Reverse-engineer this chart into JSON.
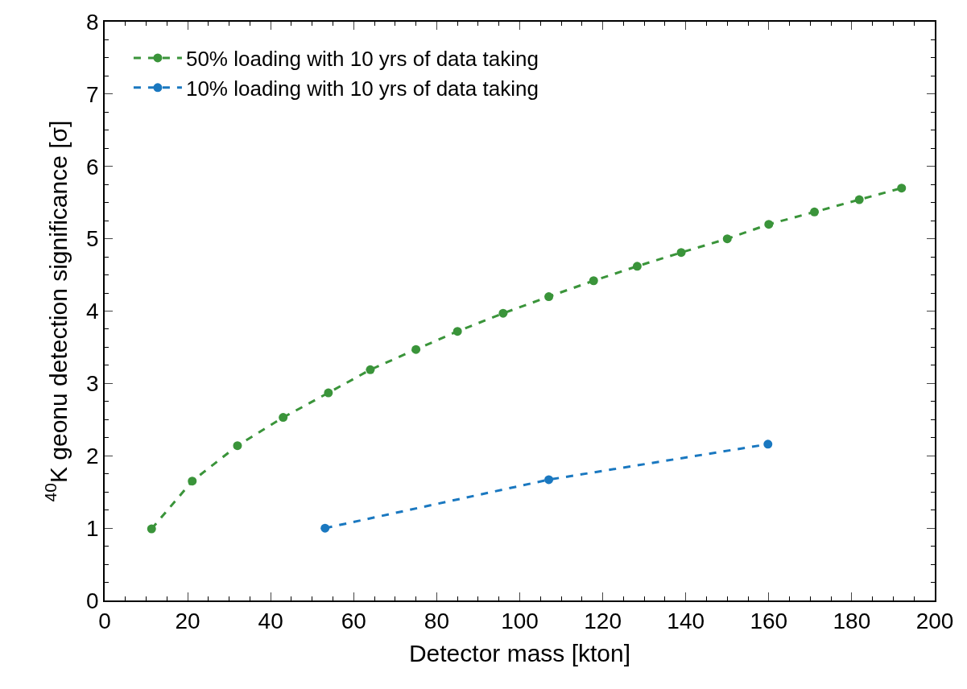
{
  "chart_data": {
    "type": "line",
    "xlabel": "Detector mass [kton]",
    "ylabel": "$^{40}$K geonu detection significance [σ]",
    "xlim": [
      0,
      200
    ],
    "xticks": [
      0,
      20,
      40,
      60,
      80,
      100,
      120,
      140,
      160,
      180,
      200
    ],
    "ylim": [
      0,
      8
    ],
    "yticks": [
      0,
      1,
      2,
      3,
      4,
      5,
      6,
      7,
      8
    ],
    "legend": "top left",
    "marker": "circle",
    "line_style": "dashed",
    "series": [
      {
        "name": "50% loading with 10 yrs of data taking",
        "color": "#3a943a",
        "x": [
          11.3,
          21.1,
          32,
          43,
          53.9,
          64,
          75,
          85,
          96,
          107,
          117.8,
          128.3,
          138.9,
          150,
          160,
          171,
          181.8,
          192
        ],
        "values": [
          0.99,
          1.65,
          2.14,
          2.53,
          2.87,
          3.19,
          3.47,
          3.72,
          3.97,
          4.2,
          4.42,
          4.62,
          4.81,
          5.0,
          5.2,
          5.37,
          5.54,
          5.7
        ]
      },
      {
        "name": "10% loading with 10 yrs of data taking",
        "color": "#1a78c0",
        "x": [
          53.1,
          107,
          159.8
        ],
        "values": [
          1.0,
          1.67,
          2.16
        ]
      }
    ]
  }
}
